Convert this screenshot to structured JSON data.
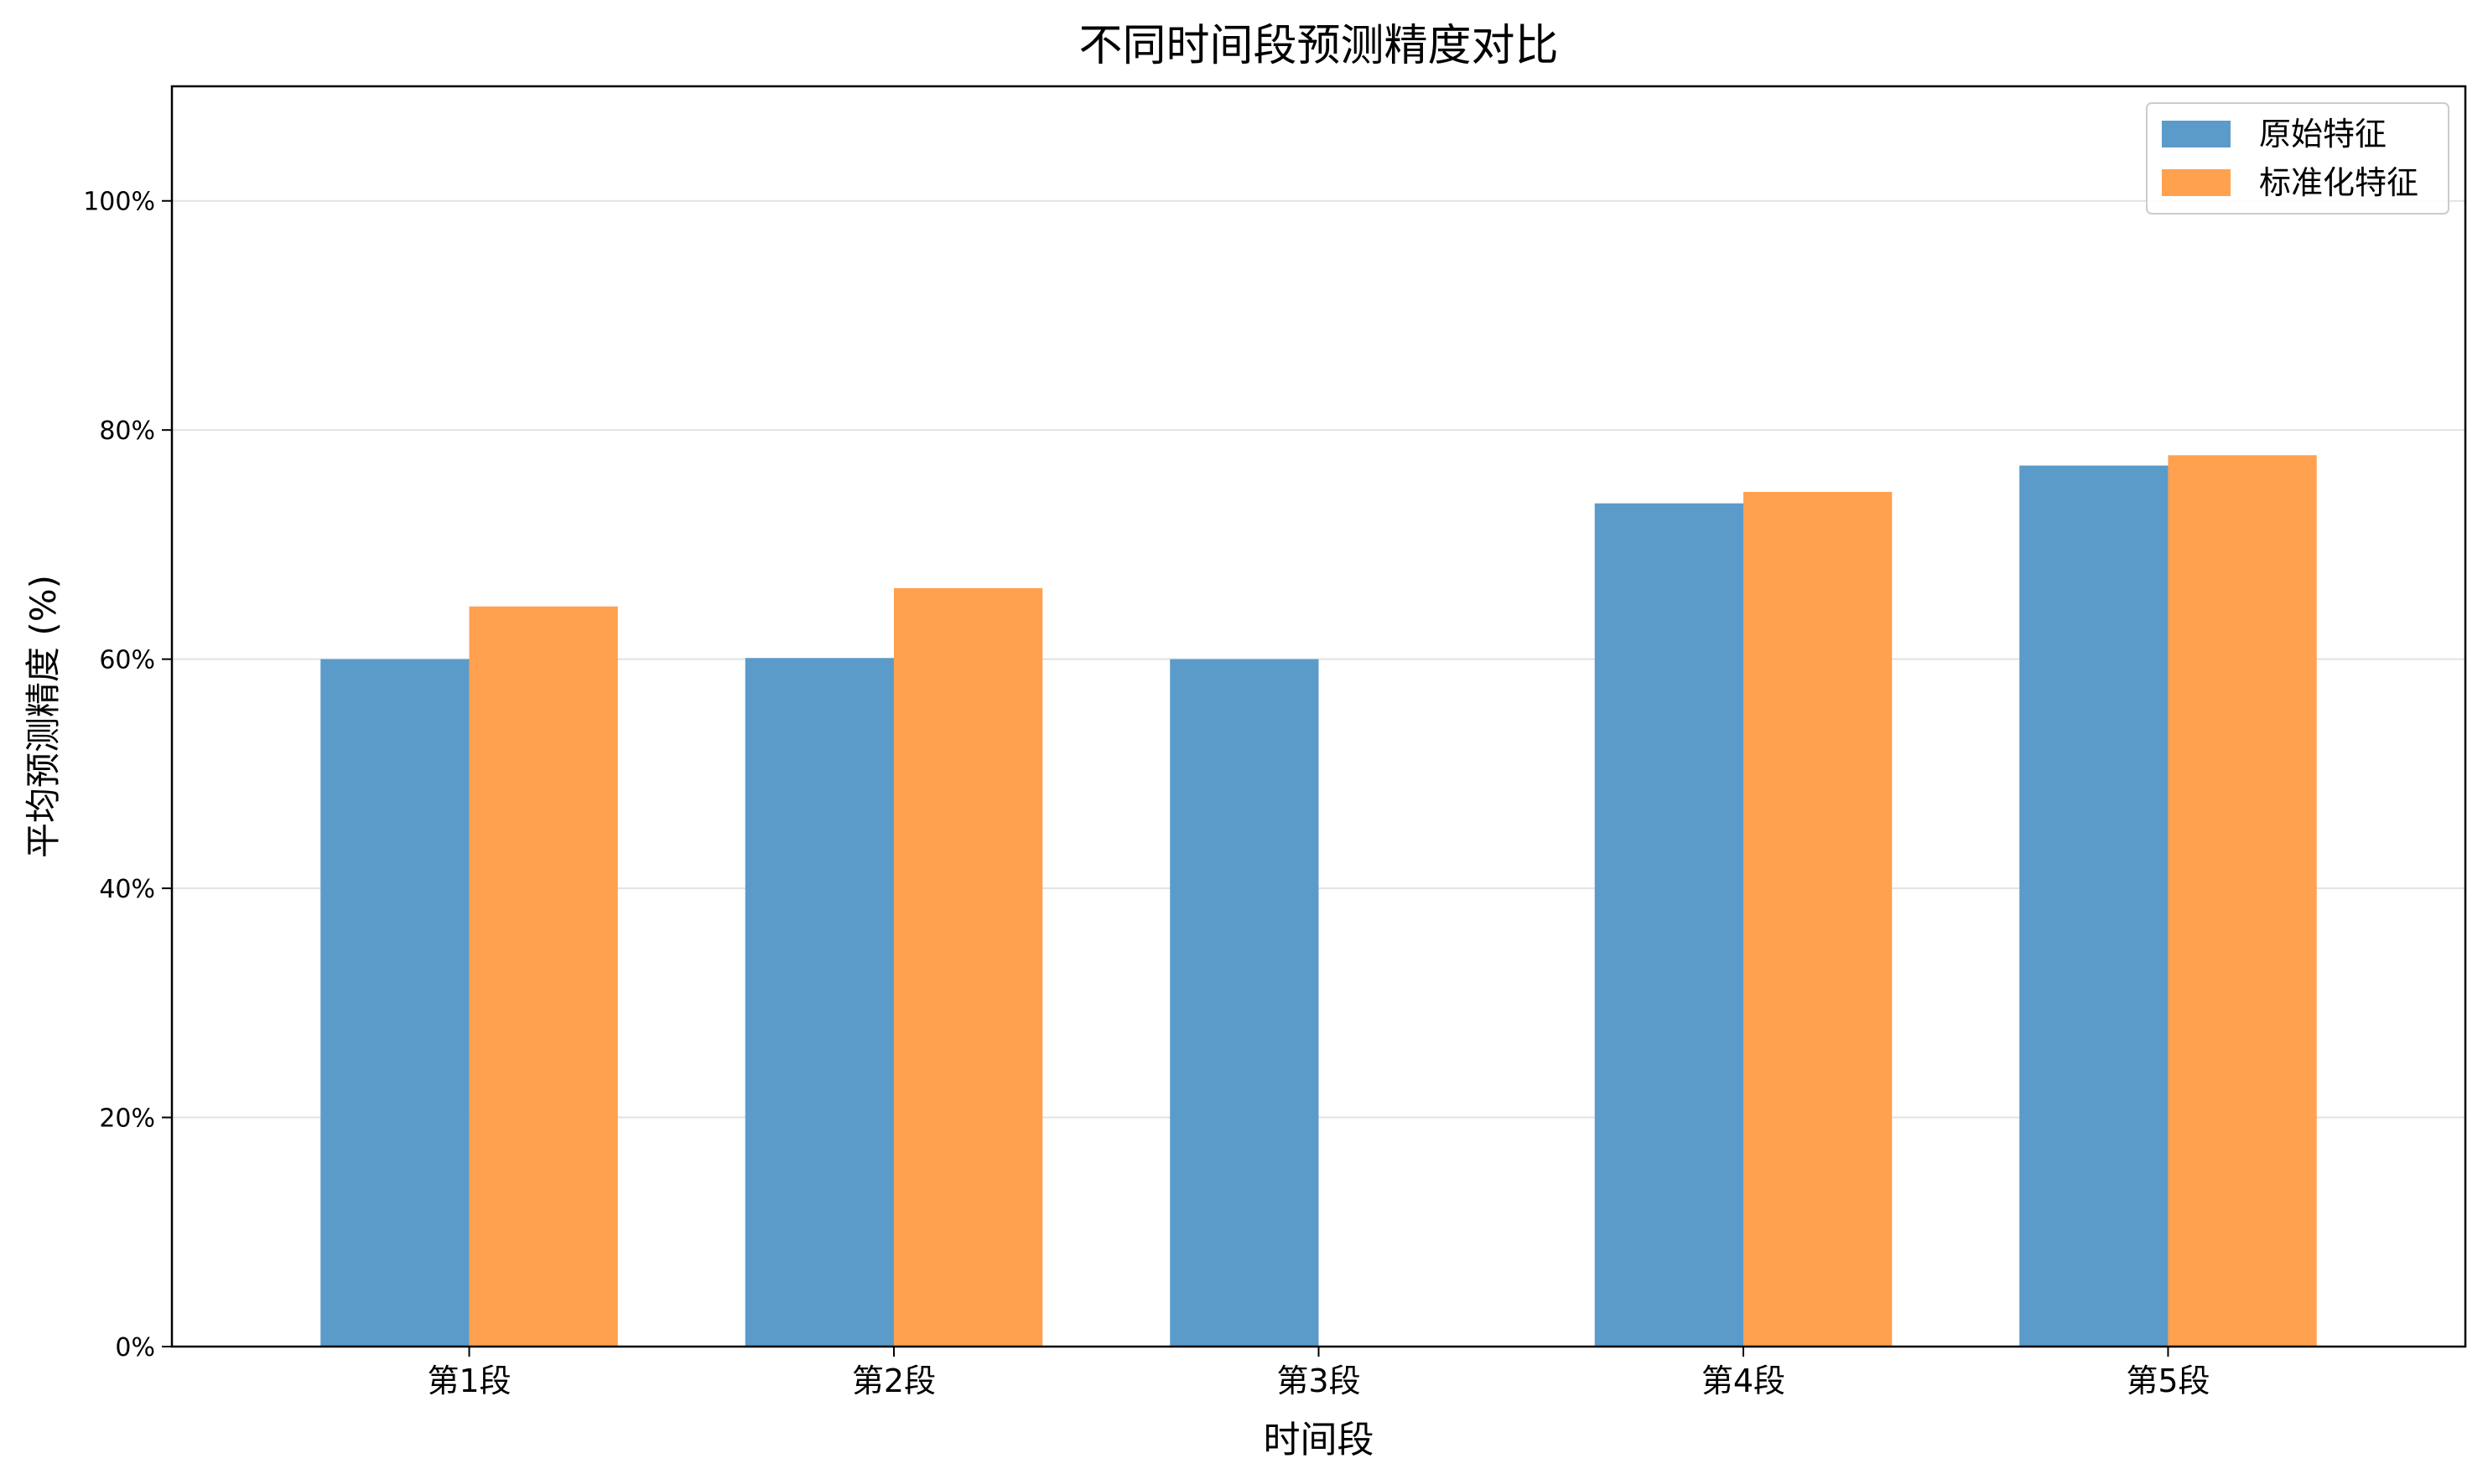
{
  "chart_data": {
    "type": "bar",
    "title": "不同时间段预测精度对比",
    "xlabel": "时间段",
    "ylabel": "平均预测精度 (%)",
    "categories": [
      "第1段",
      "第2段",
      "第3段",
      "第4段",
      "第5段"
    ],
    "series": [
      {
        "name": "原始特征",
        "color": "#5b9bc9",
        "values": [
          60.0,
          60.1,
          60.0,
          73.6,
          76.9
        ]
      },
      {
        "name": "标准化特征",
        "color": "#ffa14f",
        "values": [
          64.6,
          66.2,
          null,
          74.6,
          77.8
        ]
      }
    ],
    "ylim": [
      0,
      110
    ],
    "yticks": [
      0,
      20,
      40,
      60,
      80,
      100
    ],
    "ytick_labels": [
      "0%",
      "20%",
      "40%",
      "60%",
      "80%",
      "100%"
    ],
    "grid": "y",
    "legend": "top-right"
  }
}
